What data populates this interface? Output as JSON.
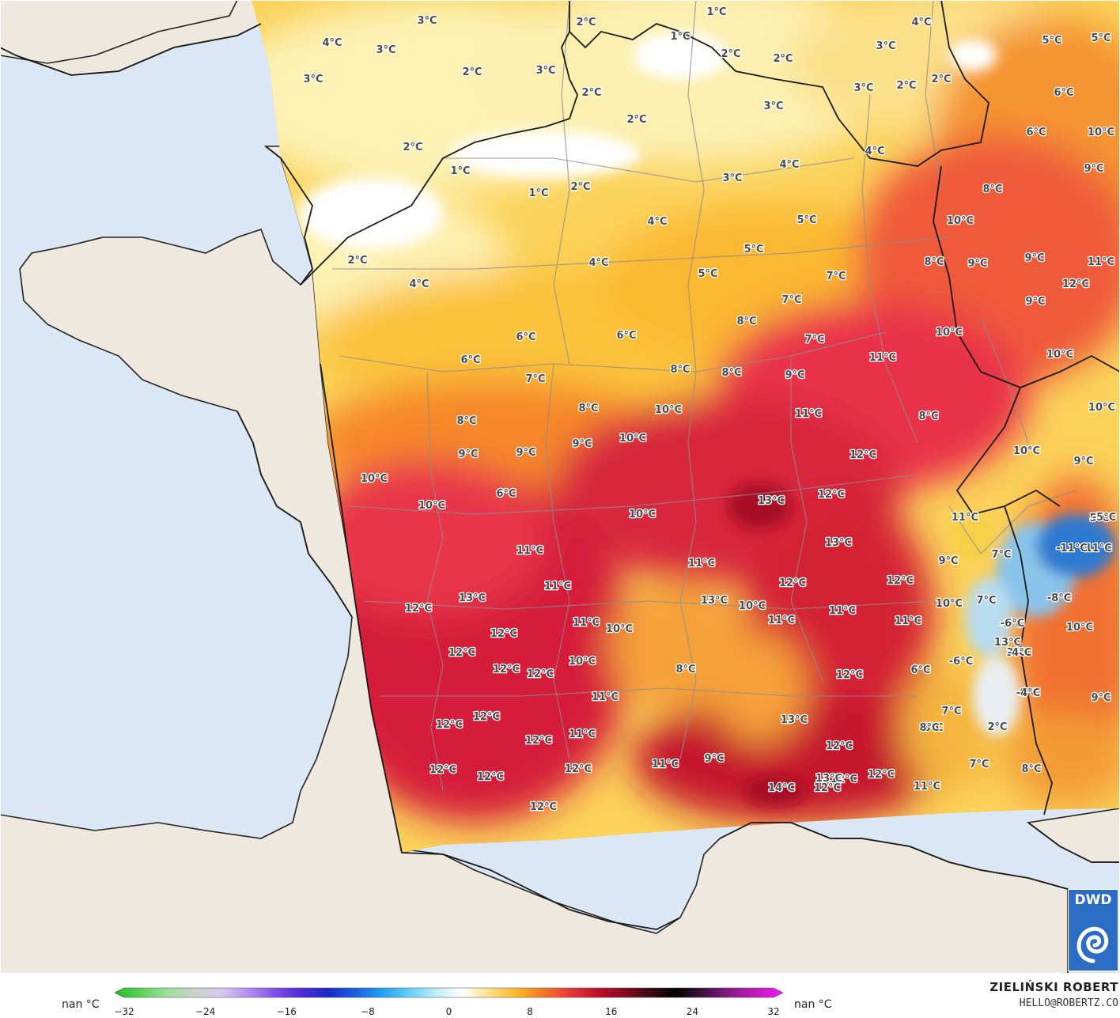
{
  "map": {
    "colors": {
      "sea": "#dbe7f4",
      "land": "#efe8de",
      "border": "#222222",
      "region_border": "#8a8a8a"
    },
    "labels": [
      {
        "t": "3°C"
      },
      {
        "t": "4°C"
      },
      {
        "t": "3°C"
      },
      {
        "t": "3°C"
      },
      {
        "t": "2°C"
      },
      {
        "t": "3°C"
      },
      {
        "t": "2°C"
      },
      {
        "t": "1°C"
      },
      {
        "t": "1°C"
      },
      {
        "t": "2°C"
      },
      {
        "t": "2°C"
      },
      {
        "t": "4°C"
      },
      {
        "t": "3°C"
      },
      {
        "t": "5°C"
      },
      {
        "t": "5°C"
      },
      {
        "t": "2°C"
      },
      {
        "t": "2°C"
      },
      {
        "t": "3°C"
      },
      {
        "t": "2°C"
      },
      {
        "t": "2°C"
      },
      {
        "t": "3°C"
      },
      {
        "t": "6°C"
      },
      {
        "t": "2°C"
      },
      {
        "t": "1°C"
      },
      {
        "t": "2°C"
      },
      {
        "t": "1°C"
      },
      {
        "t": "4°C"
      },
      {
        "t": "3°C"
      },
      {
        "t": "4°C"
      },
      {
        "t": "6°C"
      },
      {
        "t": "10°C"
      },
      {
        "t": "9°C"
      },
      {
        "t": "8°C"
      },
      {
        "t": "4°C"
      },
      {
        "t": "5°C"
      },
      {
        "t": "10°C"
      },
      {
        "t": "2°C"
      },
      {
        "t": "4°C"
      },
      {
        "t": "5°C"
      },
      {
        "t": "4°C"
      },
      {
        "t": "8°C"
      },
      {
        "t": "9°C"
      },
      {
        "t": "9°C"
      },
      {
        "t": "11°C"
      },
      {
        "t": "5°C"
      },
      {
        "t": "7°C"
      },
      {
        "t": "12°C"
      },
      {
        "t": "7°C"
      },
      {
        "t": "9°C"
      },
      {
        "t": "6°C"
      },
      {
        "t": "6°C"
      },
      {
        "t": "8°C"
      },
      {
        "t": "10°C"
      },
      {
        "t": "7°C"
      },
      {
        "t": "11°C"
      },
      {
        "t": "6°C"
      },
      {
        "t": "7°C"
      },
      {
        "t": "8°C"
      },
      {
        "t": "8°C"
      },
      {
        "t": "9°C"
      },
      {
        "t": "10°C"
      },
      {
        "t": "11°C"
      },
      {
        "t": "8°C"
      },
      {
        "t": "8°C"
      },
      {
        "t": "10°C"
      },
      {
        "t": "8°C"
      },
      {
        "t": "9°C"
      },
      {
        "t": "9°C"
      },
      {
        "t": "12°C"
      },
      {
        "t": "10°C"
      },
      {
        "t": "10°C"
      },
      {
        "t": "9°C"
      },
      {
        "t": "13°C"
      },
      {
        "t": "12°C"
      },
      {
        "t": "10°C"
      },
      {
        "t": "10°C"
      },
      {
        "t": "10°C"
      },
      {
        "t": "10°C"
      },
      {
        "t": "6°C"
      },
      {
        "t": "5°C"
      },
      {
        "t": "11°C"
      },
      {
        "t": "13°C"
      },
      {
        "t": "11°C"
      },
      {
        "t": "9°C"
      },
      {
        "t": "11°C"
      },
      {
        "t": "11°C"
      },
      {
        "t": "12°C"
      },
      {
        "t": "12°C"
      },
      {
        "t": "7°C"
      },
      {
        "t": "13°C"
      },
      {
        "t": "9°C"
      },
      {
        "t": "12°C"
      },
      {
        "t": "13°C"
      },
      {
        "t": "11°C"
      },
      {
        "t": "10°C"
      },
      {
        "t": "10°C"
      },
      {
        "t": "12°C"
      },
      {
        "t": "11°C"
      },
      {
        "t": "11°C"
      },
      {
        "t": "10°C"
      },
      {
        "t": "7°C"
      },
      {
        "t": "3°C"
      },
      {
        "t": "10°C"
      },
      {
        "t": "12°C"
      },
      {
        "t": "13°C"
      },
      {
        "t": "12°C"
      },
      {
        "t": "12°C"
      },
      {
        "t": "11°C"
      },
      {
        "t": "10°C"
      },
      {
        "t": "8°C"
      },
      {
        "t": "12°C"
      },
      {
        "t": "4°C"
      },
      {
        "t": "6°C"
      },
      {
        "t": "12°C"
      },
      {
        "t": "12°C"
      },
      {
        "t": "12°C"
      },
      {
        "t": "11°C"
      },
      {
        "t": "13°C"
      },
      {
        "t": "7°C"
      },
      {
        "t": "4°C"
      },
      {
        "t": "9°C"
      },
      {
        "t": "12°C"
      },
      {
        "t": "12°C"
      },
      {
        "t": "11°C"
      },
      {
        "t": "12°C"
      },
      {
        "t": "8°C"
      },
      {
        "t": "2°C"
      },
      {
        "t": "12°C"
      },
      {
        "t": "12°C"
      },
      {
        "t": "11°C"
      },
      {
        "t": "9°C"
      },
      {
        "t": "12°C"
      },
      {
        "t": "7°C"
      },
      {
        "t": "8°C"
      },
      {
        "t": "12°C"
      },
      {
        "t": "12°C"
      },
      {
        "t": "14°C"
      },
      {
        "t": "13°C"
      },
      {
        "t": "12°C"
      },
      {
        "t": "11°C"
      },
      {
        "t": "8°C"
      },
      {
        "t": "-11°C"
      },
      {
        "t": "-11°C"
      },
      {
        "t": "-6°C"
      },
      {
        "t": "-8°C"
      },
      {
        "t": "-6°C"
      },
      {
        "t": "-4°C"
      },
      {
        "t": "-4°C"
      },
      {
        "t": "-6°C"
      },
      {
        "t": "-5°C"
      }
    ]
  },
  "colorbar": {
    "unit_left": "nan °C",
    "unit_right": "nan °C",
    "ticks": [
      "−32",
      "−24",
      "−16",
      "−8",
      "0",
      "8",
      "16",
      "24",
      "32"
    ],
    "min": -32,
    "max": 32
  },
  "credit": {
    "name": "ZIELIŃSKI ROBERT",
    "email": "HELLO@ROBERTZ.CO"
  },
  "logo": {
    "text": "DWD"
  }
}
